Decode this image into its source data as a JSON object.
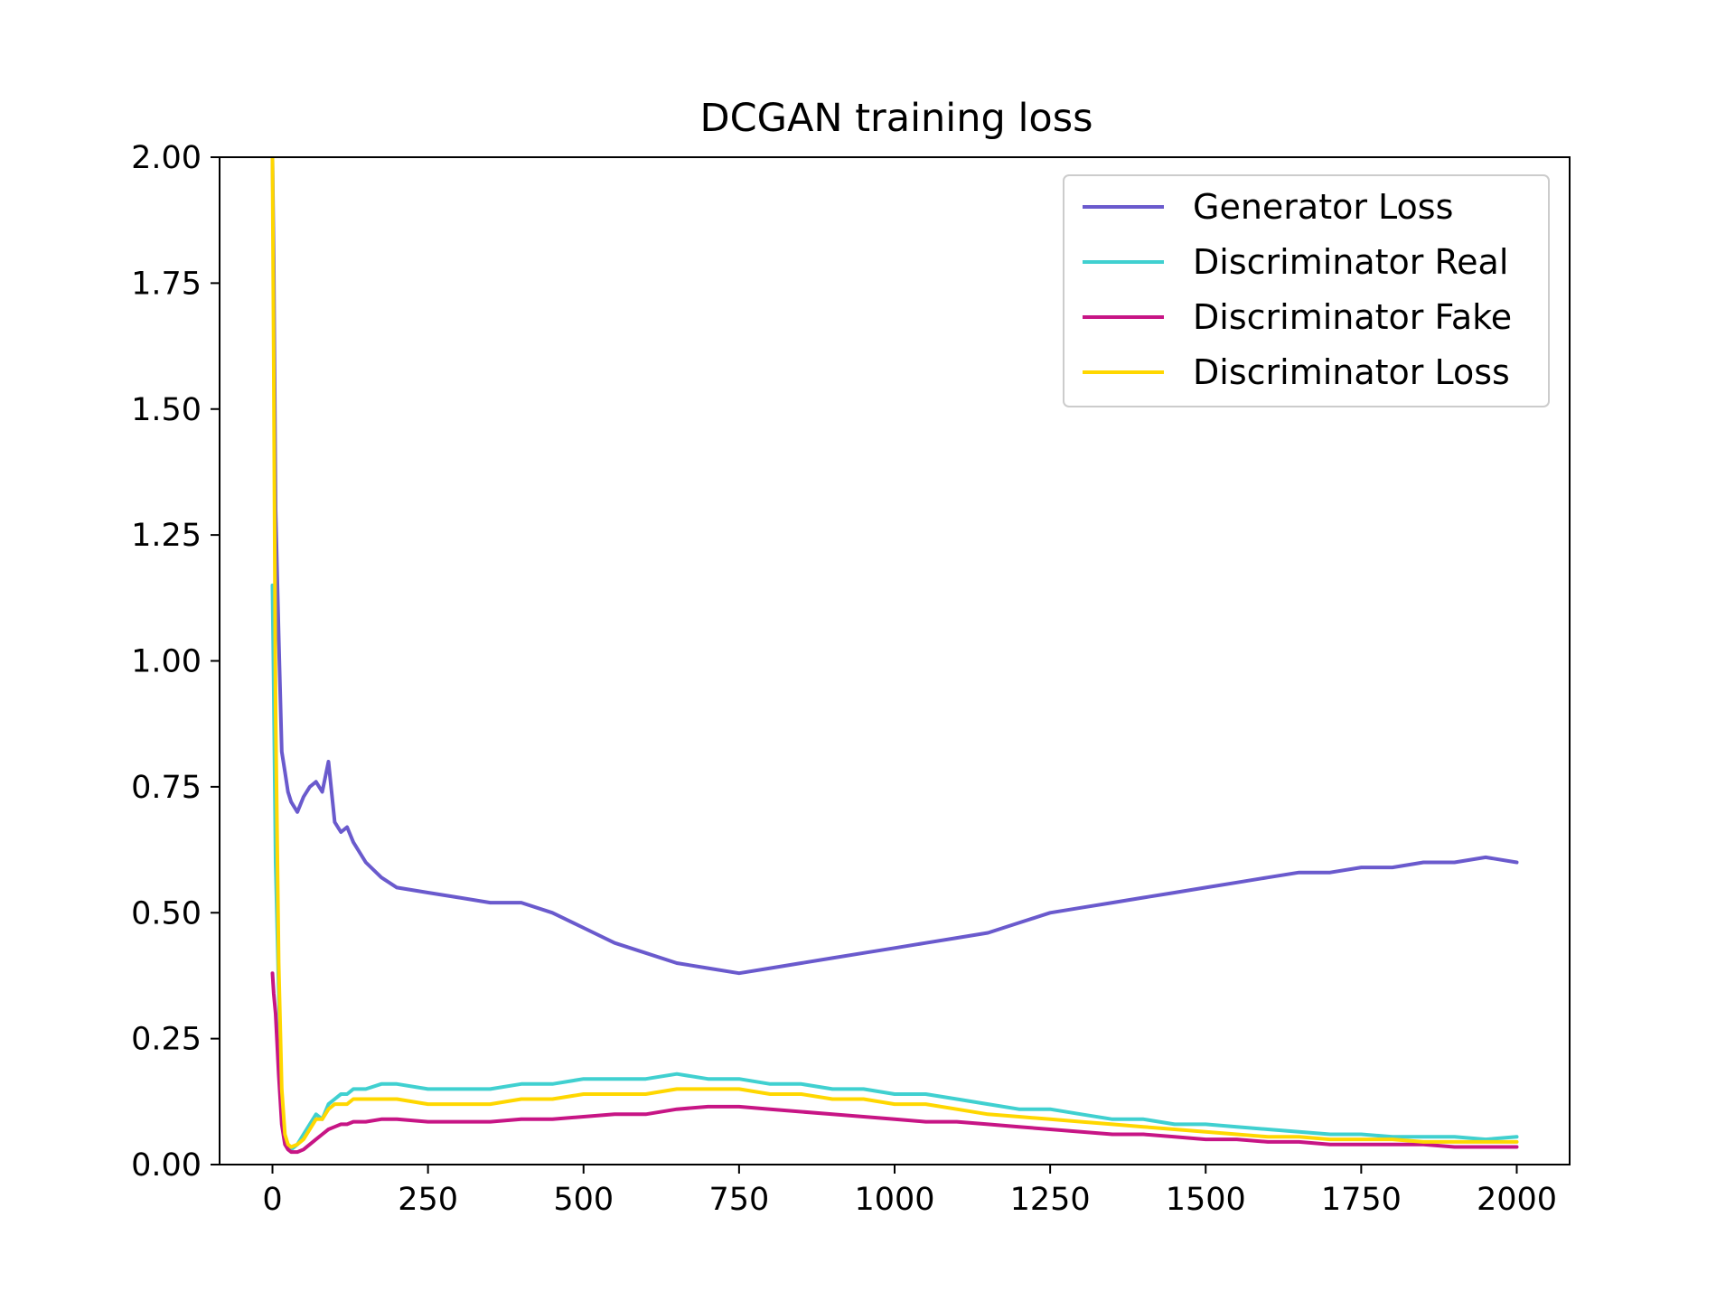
{
  "chart_data": {
    "type": "line",
    "title": "DCGAN training loss",
    "xlabel": "",
    "ylabel": "",
    "xlim": [
      -85,
      2085
    ],
    "ylim": [
      0,
      2
    ],
    "x_ticks": [
      0,
      250,
      500,
      750,
      1000,
      1250,
      1500,
      1750,
      2000
    ],
    "x_tick_labels": [
      "0",
      "250",
      "500",
      "750",
      "1000",
      "1250",
      "1500",
      "1750",
      "2000"
    ],
    "y_ticks": [
      0,
      0.25,
      0.5,
      0.75,
      1.0,
      1.25,
      1.5,
      1.75,
      2.0
    ],
    "y_tick_labels": [
      "0.00",
      "0.25",
      "0.50",
      "0.75",
      "1.00",
      "1.25",
      "1.50",
      "1.75",
      "2.00"
    ],
    "grid": false,
    "legend_position": "top-right",
    "series": [
      {
        "name": "Generator Loss",
        "color": "#6a5acd",
        "x": [
          0,
          2,
          5,
          10,
          15,
          20,
          25,
          30,
          40,
          50,
          60,
          70,
          80,
          90,
          100,
          110,
          120,
          130,
          150,
          175,
          200,
          250,
          300,
          350,
          400,
          450,
          500,
          550,
          600,
          650,
          700,
          750,
          800,
          850,
          900,
          950,
          1000,
          1050,
          1100,
          1150,
          1200,
          1250,
          1300,
          1350,
          1400,
          1450,
          1500,
          1550,
          1600,
          1650,
          1700,
          1750,
          1800,
          1850,
          1900,
          1950,
          2000
        ],
        "y": [
          2.0,
          1.8,
          1.3,
          1.05,
          0.82,
          0.78,
          0.74,
          0.72,
          0.7,
          0.73,
          0.75,
          0.76,
          0.74,
          0.8,
          0.68,
          0.66,
          0.67,
          0.64,
          0.6,
          0.57,
          0.55,
          0.54,
          0.53,
          0.52,
          0.52,
          0.5,
          0.47,
          0.44,
          0.42,
          0.4,
          0.39,
          0.38,
          0.39,
          0.4,
          0.41,
          0.42,
          0.43,
          0.44,
          0.45,
          0.46,
          0.48,
          0.5,
          0.51,
          0.52,
          0.53,
          0.54,
          0.55,
          0.56,
          0.57,
          0.58,
          0.58,
          0.59,
          0.59,
          0.6,
          0.6,
          0.61,
          0.6
        ]
      },
      {
        "name": "Discriminator Real",
        "color": "#40d0d0",
        "x": [
          0,
          2,
          5,
          10,
          15,
          20,
          25,
          30,
          40,
          50,
          60,
          70,
          80,
          90,
          100,
          110,
          120,
          130,
          150,
          175,
          200,
          250,
          300,
          350,
          400,
          450,
          500,
          550,
          600,
          650,
          700,
          750,
          800,
          850,
          900,
          950,
          1000,
          1050,
          1100,
          1150,
          1200,
          1250,
          1300,
          1350,
          1400,
          1450,
          1500,
          1550,
          1600,
          1650,
          1700,
          1750,
          1800,
          1850,
          1900,
          1950,
          2000
        ],
        "y": [
          1.15,
          0.95,
          0.6,
          0.35,
          0.12,
          0.05,
          0.035,
          0.03,
          0.04,
          0.06,
          0.08,
          0.1,
          0.09,
          0.12,
          0.13,
          0.14,
          0.14,
          0.15,
          0.15,
          0.16,
          0.16,
          0.15,
          0.15,
          0.15,
          0.16,
          0.16,
          0.17,
          0.17,
          0.17,
          0.18,
          0.17,
          0.17,
          0.16,
          0.16,
          0.15,
          0.15,
          0.14,
          0.14,
          0.13,
          0.12,
          0.11,
          0.11,
          0.1,
          0.09,
          0.09,
          0.08,
          0.08,
          0.075,
          0.07,
          0.065,
          0.06,
          0.06,
          0.055,
          0.055,
          0.055,
          0.05,
          0.055
        ]
      },
      {
        "name": "Discriminator Fake",
        "color": "#c71585",
        "x": [
          0,
          2,
          5,
          10,
          15,
          20,
          25,
          30,
          40,
          50,
          60,
          70,
          80,
          90,
          100,
          110,
          120,
          130,
          150,
          175,
          200,
          250,
          300,
          350,
          400,
          450,
          500,
          550,
          600,
          650,
          700,
          750,
          800,
          850,
          900,
          950,
          1000,
          1050,
          1100,
          1150,
          1200,
          1250,
          1300,
          1350,
          1400,
          1450,
          1500,
          1550,
          1600,
          1650,
          1700,
          1750,
          1800,
          1850,
          1900,
          1950,
          2000
        ],
        "y": [
          0.38,
          0.34,
          0.3,
          0.18,
          0.08,
          0.04,
          0.03,
          0.025,
          0.025,
          0.03,
          0.04,
          0.05,
          0.06,
          0.07,
          0.075,
          0.08,
          0.08,
          0.085,
          0.085,
          0.09,
          0.09,
          0.085,
          0.085,
          0.085,
          0.09,
          0.09,
          0.095,
          0.1,
          0.1,
          0.11,
          0.115,
          0.115,
          0.11,
          0.105,
          0.1,
          0.095,
          0.09,
          0.085,
          0.085,
          0.08,
          0.075,
          0.07,
          0.065,
          0.06,
          0.06,
          0.055,
          0.05,
          0.05,
          0.045,
          0.045,
          0.04,
          0.04,
          0.04,
          0.04,
          0.035,
          0.035,
          0.035
        ]
      },
      {
        "name": "Discriminator Loss",
        "color": "#ffd700",
        "x": [
          0,
          2,
          5,
          10,
          15,
          20,
          25,
          30,
          40,
          50,
          60,
          70,
          80,
          90,
          100,
          110,
          120,
          130,
          150,
          175,
          200,
          250,
          300,
          350,
          400,
          450,
          500,
          550,
          600,
          650,
          700,
          750,
          800,
          850,
          900,
          950,
          1000,
          1050,
          1100,
          1150,
          1200,
          1250,
          1300,
          1350,
          1400,
          1450,
          1500,
          1550,
          1600,
          1650,
          1700,
          1750,
          1800,
          1850,
          1900,
          1950,
          2000
        ],
        "y": [
          2.0,
          1.6,
          0.9,
          0.4,
          0.15,
          0.06,
          0.04,
          0.035,
          0.04,
          0.05,
          0.07,
          0.09,
          0.09,
          0.11,
          0.12,
          0.12,
          0.12,
          0.13,
          0.13,
          0.13,
          0.13,
          0.12,
          0.12,
          0.12,
          0.13,
          0.13,
          0.14,
          0.14,
          0.14,
          0.15,
          0.15,
          0.15,
          0.14,
          0.14,
          0.13,
          0.13,
          0.12,
          0.12,
          0.11,
          0.1,
          0.095,
          0.09,
          0.085,
          0.08,
          0.075,
          0.07,
          0.065,
          0.06,
          0.055,
          0.055,
          0.05,
          0.05,
          0.05,
          0.045,
          0.045,
          0.045,
          0.045
        ]
      }
    ]
  }
}
